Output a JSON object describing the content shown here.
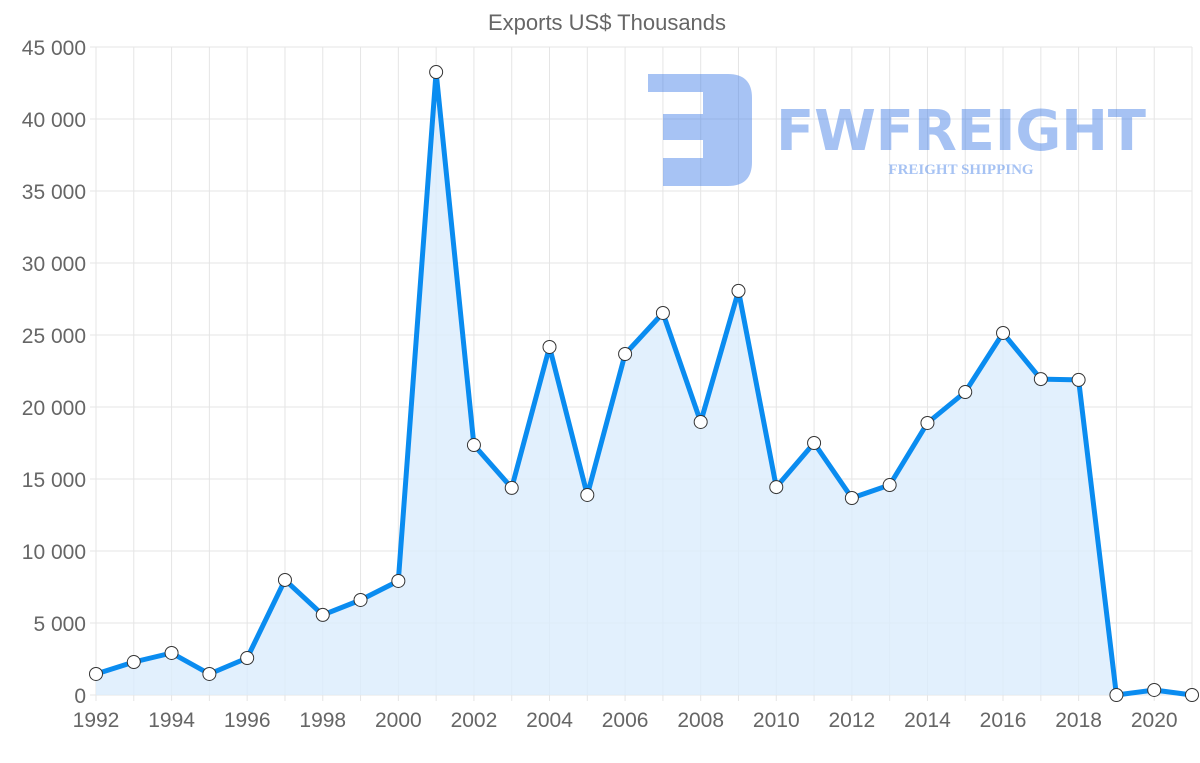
{
  "chart_data": {
    "type": "area",
    "title": "Exports US$ Thousands",
    "xlabel": "",
    "ylabel": "",
    "x": [
      1992,
      1993,
      1994,
      1995,
      1996,
      1997,
      1998,
      1999,
      2000,
      2001,
      2002,
      2003,
      2004,
      2005,
      2006,
      2007,
      2008,
      2009,
      2010,
      2011,
      2012,
      2013,
      2014,
      2015,
      2016,
      2017,
      2018,
      2019,
      2020,
      2021
    ],
    "series": [
      {
        "name": "Exports US$ Thousands",
        "values": [
          1460,
          2290,
          2920,
          1460,
          2570,
          7990,
          5560,
          6600,
          7920,
          43260,
          17360,
          14380,
          24170,
          13890,
          23680,
          26530,
          18960,
          28060,
          14440,
          17500,
          13680,
          14580,
          18890,
          21040,
          25140,
          21940,
          21880,
          0,
          350,
          0
        ]
      }
    ],
    "xlim": [
      1992,
      2021
    ],
    "ylim": [
      0,
      45000
    ],
    "yticks": [
      "0",
      "5 000",
      "10 000",
      "15 000",
      "20 000",
      "25 000",
      "30 000",
      "35 000",
      "40 000",
      "45 000"
    ],
    "xticks": [
      "1992",
      "1994",
      "1996",
      "1998",
      "2000",
      "2002",
      "2004",
      "2006",
      "2008",
      "2010",
      "2012",
      "2014",
      "2016",
      "2018",
      "2020"
    ],
    "grid": true,
    "legend": "none",
    "colors": {
      "line": "#0a8cf0",
      "fill": "#dbecfc",
      "grid": "#e5e5e5"
    }
  },
  "watermark": {
    "brand": "FWFREIGHT",
    "tagline": "FREIGHT SHIPPING"
  }
}
